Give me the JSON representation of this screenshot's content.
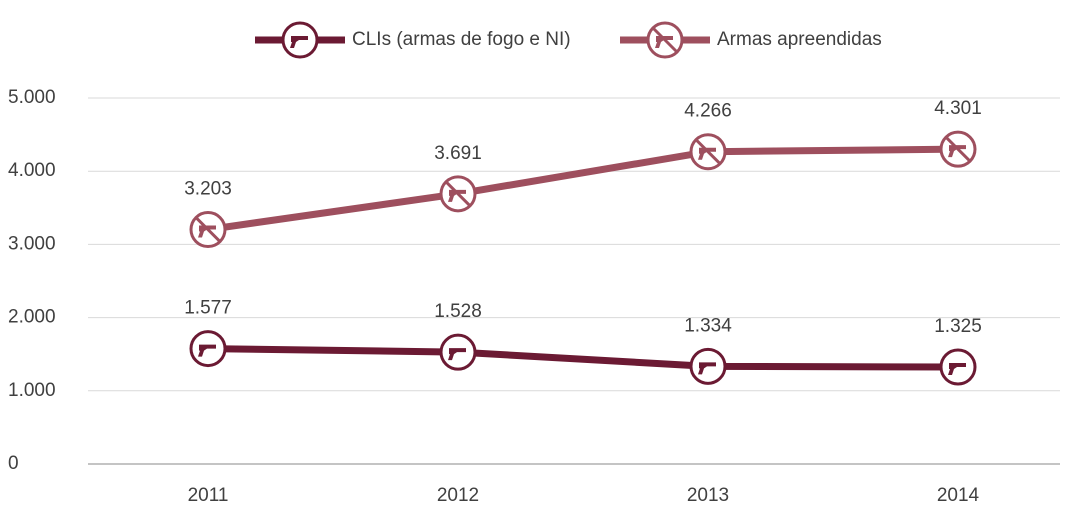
{
  "chart_data": {
    "type": "line",
    "categories": [
      "2011",
      "2012",
      "2013",
      "2014"
    ],
    "series": [
      {
        "name": "CLIs (armas de fogo e NI)",
        "color": "#6b1a33",
        "values": [
          1577,
          1528,
          1334,
          1325
        ],
        "value_labels": [
          "1.577",
          "1.528",
          "1.334",
          "1.325"
        ]
      },
      {
        "name": "Armas apreendidas",
        "color": "#9e4f5e",
        "values": [
          3203,
          3691,
          4266,
          4301
        ],
        "value_labels": [
          "3.203",
          "3.691",
          "4.266",
          "4.301"
        ]
      }
    ],
    "ylim": [
      0,
      5000
    ],
    "yticks": [
      0,
      {
        "value": 1000,
        "label": "1.000"
      },
      {
        "value": 2000,
        "label": "2.000"
      },
      {
        "value": 3000,
        "label": "3.000"
      },
      {
        "value": 4000,
        "label": "4.000"
      },
      {
        "value": 5000,
        "label": "5.000"
      }
    ],
    "grid": true,
    "legend": "top"
  }
}
